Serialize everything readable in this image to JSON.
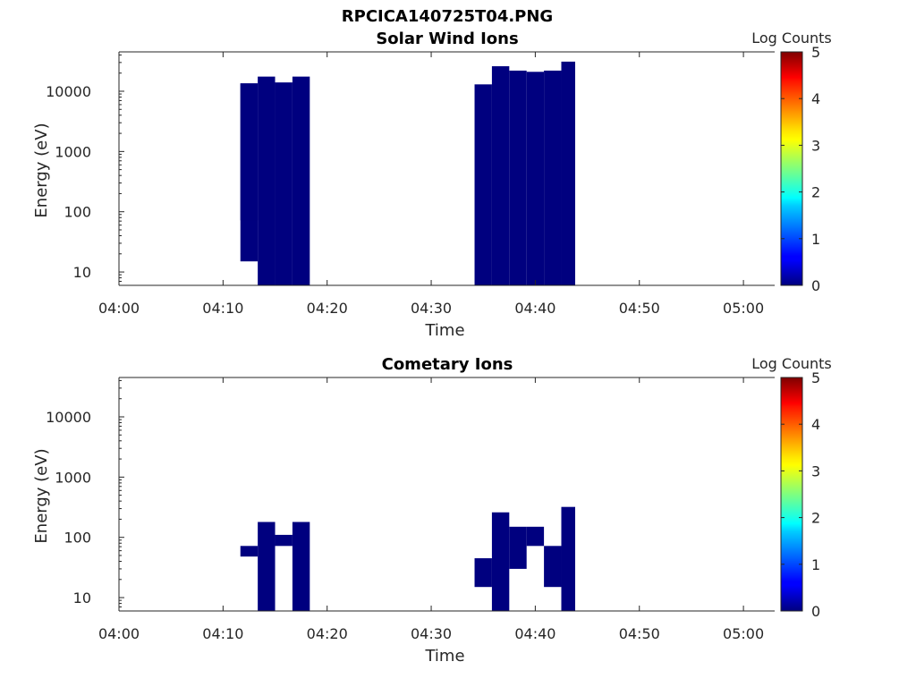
{
  "figure": {
    "title": "RPCICA140725T04.PNG"
  },
  "chart_data": [
    {
      "type": "heatmap",
      "title": "Solar Wind Ions",
      "xlabel": "Time",
      "ylabel": "Energy (eV)",
      "x_ticks": [
        "04:00",
        "04:10",
        "04:20",
        "04:30",
        "04:40",
        "04:50",
        "05:00"
      ],
      "y_ticks": [
        "10",
        "100",
        "1000",
        "10000"
      ],
      "y_scale": "log",
      "ylim": [
        6,
        45000
      ],
      "colorbar": {
        "label": "Log Counts",
        "ticks": [
          "0",
          "1",
          "2",
          "3",
          "4",
          "5"
        ],
        "range": [
          0,
          5
        ]
      },
      "cells": [
        {
          "t0": "04:11:40",
          "t1": "04:13:20",
          "e0": 15,
          "e1": 13500,
          "log_counts": 0
        },
        {
          "t0": "04:11:40",
          "t1": "04:13:20",
          "e0": 72,
          "e1": 13500,
          "log_counts": 0
        },
        {
          "t0": "04:13:20",
          "t1": "04:15:00",
          "e0": 6,
          "e1": 17500,
          "log_counts": 0
        },
        {
          "t0": "04:15:00",
          "t1": "04:16:40",
          "e0": 6,
          "e1": 14000,
          "log_counts": 0
        },
        {
          "t0": "04:16:40",
          "t1": "04:18:20",
          "e0": 6,
          "e1": 17500,
          "log_counts": 0
        },
        {
          "t0": "04:34:10",
          "t1": "04:35:50",
          "e0": 6,
          "e1": 13000,
          "log_counts": 0
        },
        {
          "t0": "04:35:50",
          "t1": "04:37:30",
          "e0": 6,
          "e1": 26000,
          "log_counts": 0
        },
        {
          "t0": "04:37:30",
          "t1": "04:39:10",
          "e0": 6,
          "e1": 22000,
          "log_counts": 0
        },
        {
          "t0": "04:39:10",
          "t1": "04:40:50",
          "e0": 6,
          "e1": 21000,
          "log_counts": 0
        },
        {
          "t0": "04:40:50",
          "t1": "04:42:30",
          "e0": 6,
          "e1": 22000,
          "log_counts": 0
        },
        {
          "t0": "04:42:30",
          "t1": "04:43:50",
          "e0": 6,
          "e1": 31000,
          "log_counts": 0
        }
      ]
    },
    {
      "type": "heatmap",
      "title": "Cometary Ions",
      "xlabel": "Time",
      "ylabel": "Energy (eV)",
      "x_ticks": [
        "04:00",
        "04:10",
        "04:20",
        "04:30",
        "04:40",
        "04:50",
        "05:00"
      ],
      "y_ticks": [
        "10",
        "100",
        "1000",
        "10000"
      ],
      "y_scale": "log",
      "ylim": [
        6,
        45000
      ],
      "colorbar": {
        "label": "Log Counts",
        "ticks": [
          "0",
          "1",
          "2",
          "3",
          "4",
          "5"
        ],
        "range": [
          0,
          5
        ]
      },
      "cells": [
        {
          "t0": "04:11:40",
          "t1": "04:13:20",
          "e0": 48,
          "e1": 72,
          "log_counts": 0
        },
        {
          "t0": "04:13:20",
          "t1": "04:15:00",
          "e0": 6,
          "e1": 180,
          "log_counts": 0
        },
        {
          "t0": "04:15:00",
          "t1": "04:16:40",
          "e0": 72,
          "e1": 110,
          "log_counts": 0
        },
        {
          "t0": "04:16:40",
          "t1": "04:18:20",
          "e0": 6,
          "e1": 180,
          "log_counts": 0
        },
        {
          "t0": "04:34:10",
          "t1": "04:35:50",
          "e0": 15,
          "e1": 45,
          "log_counts": 0
        },
        {
          "t0": "04:35:50",
          "t1": "04:37:30",
          "e0": 6,
          "e1": 260,
          "log_counts": 0
        },
        {
          "t0": "04:37:30",
          "t1": "04:39:10",
          "e0": 30,
          "e1": 150,
          "log_counts": 0
        },
        {
          "t0": "04:39:10",
          "t1": "04:40:50",
          "e0": 72,
          "e1": 150,
          "log_counts": 0
        },
        {
          "t0": "04:40:50",
          "t1": "04:42:30",
          "e0": 15,
          "e1": 72,
          "log_counts": 0
        },
        {
          "t0": "04:42:30",
          "t1": "04:43:50",
          "e0": 6,
          "e1": 320,
          "log_counts": 0
        }
      ]
    }
  ]
}
